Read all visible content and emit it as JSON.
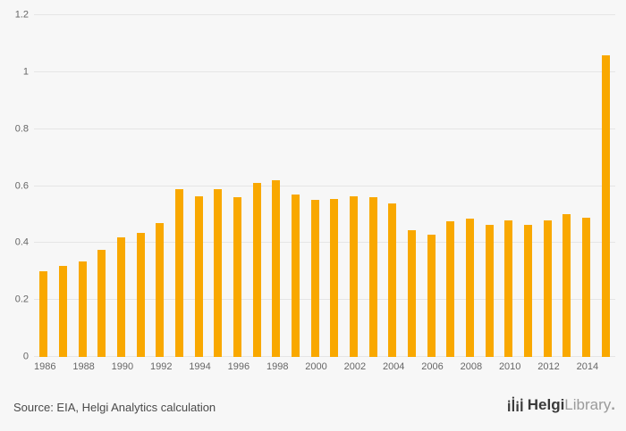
{
  "chart_data": {
    "type": "bar",
    "title": "",
    "xlabel": "",
    "ylabel": "",
    "categories": [
      1986,
      1987,
      1988,
      1989,
      1990,
      1991,
      1992,
      1993,
      1994,
      1995,
      1996,
      1997,
      1998,
      1999,
      2000,
      2001,
      2002,
      2003,
      2004,
      2005,
      2006,
      2007,
      2008,
      2009,
      2010,
      2011,
      2012,
      2013,
      2014,
      2015
    ],
    "values": [
      0.3,
      0.32,
      0.335,
      0.375,
      0.42,
      0.435,
      0.47,
      0.59,
      0.565,
      0.59,
      0.56,
      0.61,
      0.62,
      0.57,
      0.55,
      0.555,
      0.565,
      0.56,
      0.54,
      0.445,
      0.43,
      0.475,
      0.485,
      0.465,
      0.48,
      0.465,
      0.48,
      0.5,
      0.49,
      1.06
    ],
    "ylim": [
      0,
      1.2
    ],
    "yticks": [
      "0",
      "0.2",
      "0.4",
      "0.6",
      "0.8",
      "1",
      "1.2"
    ],
    "xticks": [
      "1986",
      "1988",
      "1990",
      "1992",
      "1994",
      "1996",
      "1998",
      "2000",
      "2002",
      "2004",
      "2006",
      "2008",
      "2010",
      "2012",
      "2014"
    ],
    "grid": "horizontal",
    "legend": "none"
  },
  "footer": {
    "source": "Source: EIA, Helgi Analytics calculation",
    "logo": {
      "name": "Helgi",
      "suffix": "Library",
      "period": "."
    }
  },
  "colors": {
    "background": "#f7f7f7",
    "bar": "#f9a800",
    "gridline": "#e5e5e5",
    "tick_text": "#666666",
    "source_text": "#4a4a4a",
    "logo_dark": "#3a3a3a",
    "logo_light": "#9b9b9b"
  }
}
